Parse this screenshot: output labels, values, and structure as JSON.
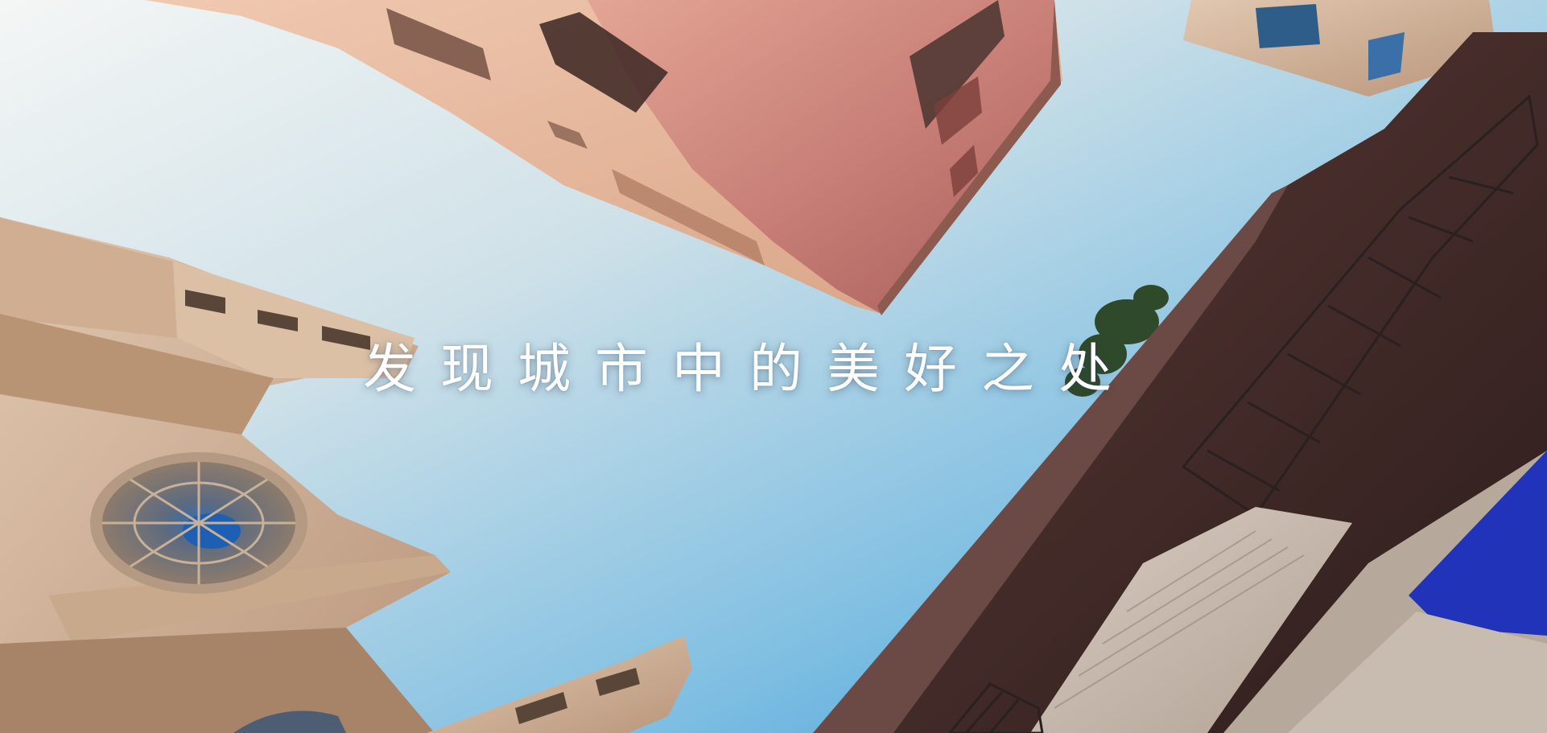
{
  "hero": {
    "headline": "发现城市中的美好之处"
  },
  "colors": {
    "sky_top": "#eef3f5",
    "sky_bottom": "#3aa0e0",
    "pink_building": "#c9857c",
    "stone_left": "#d2b39a",
    "dark_right": "#4a3230",
    "blue_window": "#1f2fa0",
    "headline_text": "#ffffff"
  },
  "icons": {
    "rose_window": "rose-window-icon"
  }
}
